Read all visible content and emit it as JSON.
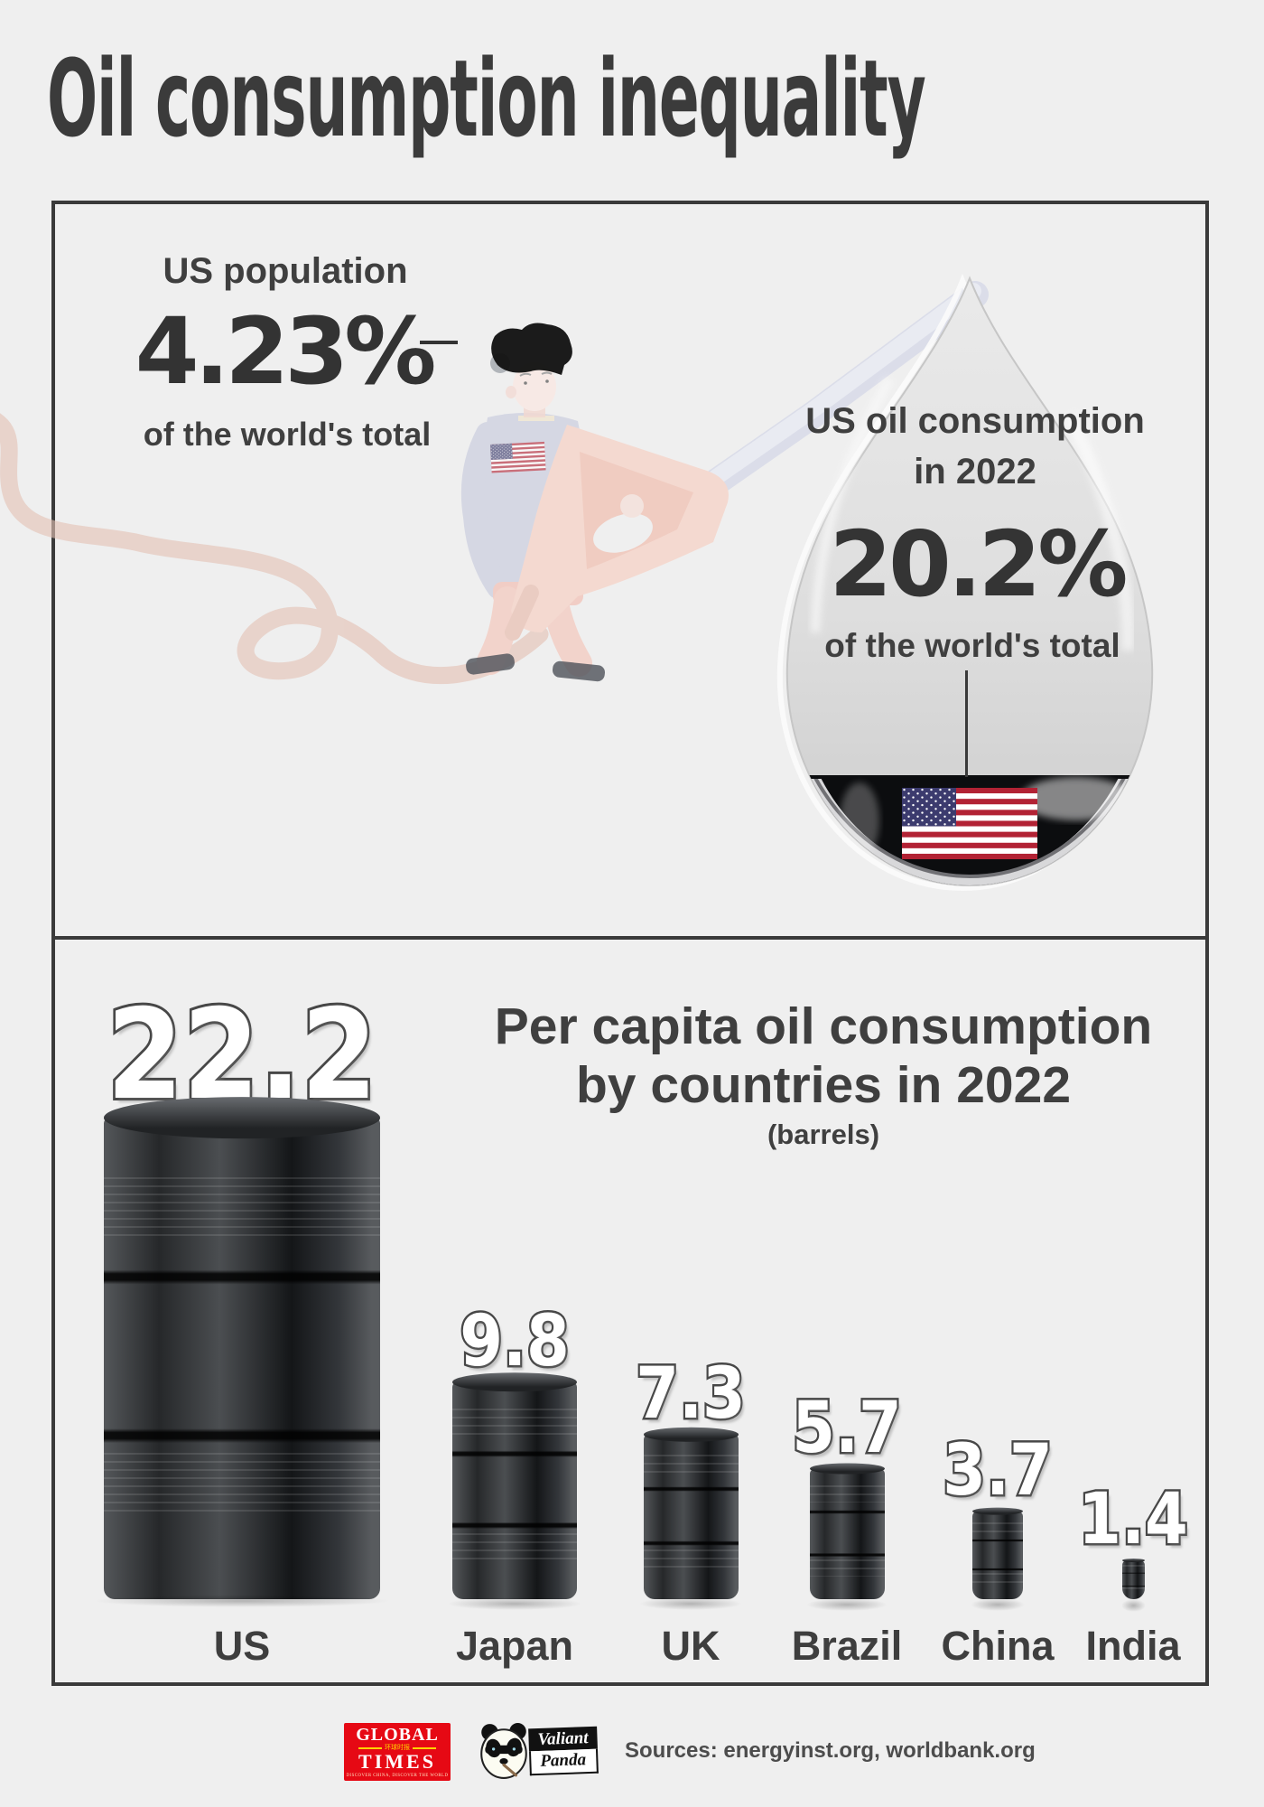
{
  "title": "Oil consumption inequality",
  "panel_population": {
    "label": "US population",
    "value": "4.23%",
    "sublabel": "of the world's total"
  },
  "panel_consumption": {
    "label_line1": "US oil consumption",
    "label_line2": "in 2022",
    "value": "20.2%",
    "sublabel": "of the world's total"
  },
  "chart_heading": {
    "line1": "Per capita oil consumption",
    "line2": "by countries in 2022",
    "unit_note": "(barrels)"
  },
  "chart_data": {
    "type": "bar",
    "title": "Per capita oil consumption by countries in 2022",
    "unit": "barrels",
    "categories": [
      "US",
      "Japan",
      "UK",
      "Brazil",
      "China",
      "India"
    ],
    "values": [
      22.2,
      9.8,
      7.3,
      5.7,
      3.7,
      1.4
    ],
    "bar_style": "3d-oil-barrels",
    "value_label_style": "white-with-dark-outline",
    "legend": "none",
    "grid": "off"
  },
  "footer": {
    "sources": "Sources: energyinst.org, worldbank.org",
    "global_times": {
      "word1": "GLOBAL",
      "word2": "TIMES",
      "chinese": "环球时报",
      "tagline": "DISCOVER CHINA, DISCOVER THE WORLD"
    },
    "valiant_panda": {
      "word1": "Valiant",
      "word2": "Panda"
    }
  },
  "colors": {
    "background": "#efefef",
    "panel_border": "#3a3a3a",
    "text_dark": "#3c3c3c",
    "barrel_dark": "#26282a",
    "flag_red": "#b22234",
    "flag_blue": "#3c3b6e",
    "gt_red": "#e60914",
    "hose_pink": "#e4c1b5",
    "nozzle_salmon": "#f8cdbe",
    "spout_lavender": "#dfe2f0",
    "drop_gray": "#d9d9d9",
    "drop_bottom_black": "#0c0d0f"
  }
}
